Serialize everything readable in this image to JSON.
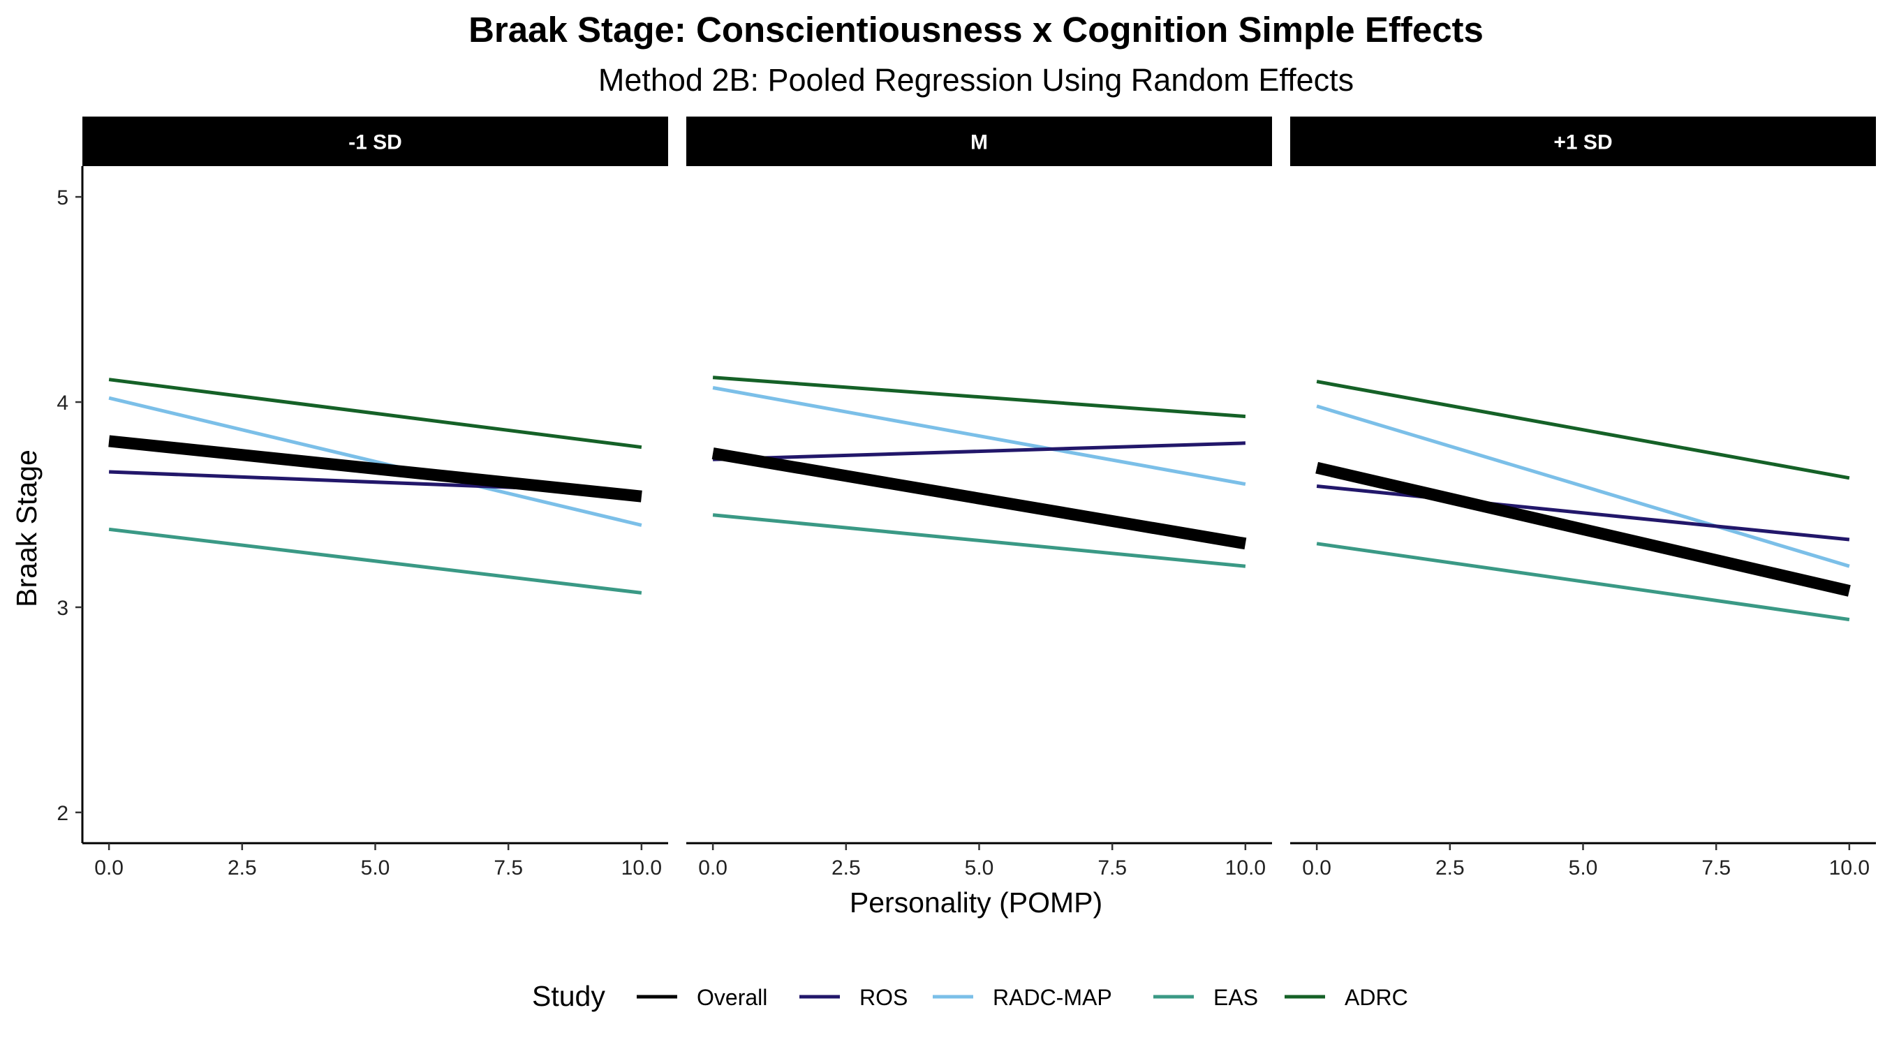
{
  "chart_data": {
    "type": "line",
    "title": "Braak Stage: Conscientiousness x Cognition Simple Effects",
    "subtitle": "Method 2B: Pooled Regression Using Random Effects",
    "xlabel": "Personality (POMP)",
    "ylabel": "Braak Stage",
    "xlim": [
      -0.5,
      10.5
    ],
    "ylim": [
      1.85,
      5.15
    ],
    "x_ticks": [
      0,
      2.5,
      5,
      7.5,
      10
    ],
    "x_tick_labels": [
      "0.0",
      "2.5",
      "5.0",
      "7.5",
      "10.0"
    ],
    "y_ticks": [
      2,
      3,
      4,
      5
    ],
    "y_tick_labels": [
      "2",
      "3",
      "4",
      "5"
    ],
    "grid": false,
    "legend": {
      "title": "Study",
      "position": "bottom",
      "entries": [
        {
          "name": "Overall",
          "color": "#000000"
        },
        {
          "name": "ROS",
          "color": "#22176a"
        },
        {
          "name": "RADC-MAP",
          "color": "#7bbfe8"
        },
        {
          "name": "EAS",
          "color": "#3a9985"
        },
        {
          "name": "ADRC",
          "color": "#156127"
        }
      ]
    },
    "panels": [
      {
        "label": "-1 SD",
        "series": [
          {
            "name": "ADRC",
            "color": "#156127",
            "x": [
              0,
              10
            ],
            "y": [
              4.11,
              3.78
            ]
          },
          {
            "name": "RADC-MAP",
            "color": "#7bbfe8",
            "x": [
              0,
              10
            ],
            "y": [
              4.02,
              3.4
            ]
          },
          {
            "name": "EAS",
            "color": "#3a9985",
            "x": [
              0,
              10
            ],
            "y": [
              3.38,
              3.07
            ]
          },
          {
            "name": "ROS",
            "color": "#22176a",
            "x": [
              0,
              10
            ],
            "y": [
              3.66,
              3.56
            ]
          },
          {
            "name": "Overall",
            "color": "#000000",
            "x": [
              0,
              10
            ],
            "y": [
              3.81,
              3.54
            ]
          }
        ]
      },
      {
        "label": "M",
        "series": [
          {
            "name": "ADRC",
            "color": "#156127",
            "x": [
              0,
              10
            ],
            "y": [
              4.12,
              3.93
            ]
          },
          {
            "name": "RADC-MAP",
            "color": "#7bbfe8",
            "x": [
              0,
              10
            ],
            "y": [
              4.07,
              3.6
            ]
          },
          {
            "name": "EAS",
            "color": "#3a9985",
            "x": [
              0,
              10
            ],
            "y": [
              3.45,
              3.2
            ]
          },
          {
            "name": "ROS",
            "color": "#22176a",
            "x": [
              0,
              10
            ],
            "y": [
              3.72,
              3.8
            ]
          },
          {
            "name": "Overall",
            "color": "#000000",
            "x": [
              0,
              10
            ],
            "y": [
              3.75,
              3.31
            ]
          }
        ]
      },
      {
        "label": "+1 SD",
        "series": [
          {
            "name": "ADRC",
            "color": "#156127",
            "x": [
              0,
              10
            ],
            "y": [
              4.1,
              3.63
            ]
          },
          {
            "name": "RADC-MAP",
            "color": "#7bbfe8",
            "x": [
              0,
              10
            ],
            "y": [
              3.98,
              3.2
            ]
          },
          {
            "name": "EAS",
            "color": "#3a9985",
            "x": [
              0,
              10
            ],
            "y": [
              3.31,
              2.94
            ]
          },
          {
            "name": "ROS",
            "color": "#22176a",
            "x": [
              0,
              10
            ],
            "y": [
              3.59,
              3.33
            ]
          },
          {
            "name": "Overall",
            "color": "#000000",
            "x": [
              0,
              10
            ],
            "y": [
              3.68,
              3.08
            ]
          }
        ]
      }
    ]
  }
}
